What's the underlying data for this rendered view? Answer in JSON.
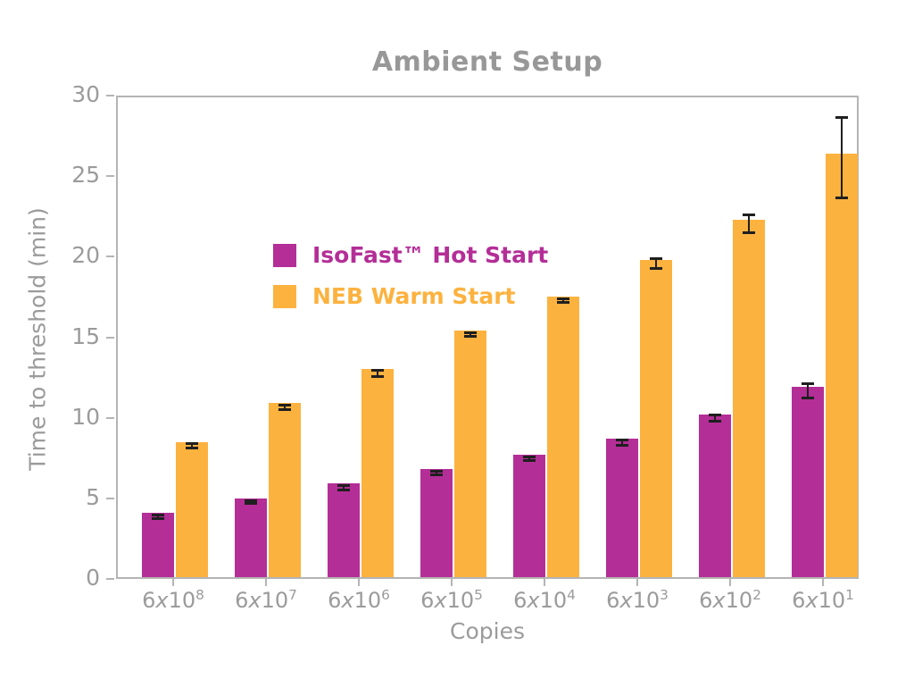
{
  "title": "Ambient Setup",
  "colors": {
    "isofast_magenta": "#b42e97",
    "neb_orange": "#fcb23f",
    "axis_gray": "#b4b4b4",
    "text_gray": "#9b9b9b",
    "error_bar_black": "#1f1f1f",
    "background": "#ffffff"
  },
  "chart_data": {
    "type": "bar",
    "title": "Ambient Setup",
    "xlabel": "Copies",
    "ylabel": "Time to threshold (min)",
    "ylim": [
      0,
      30
    ],
    "yticks": [
      0,
      5,
      10,
      15,
      20,
      25,
      30
    ],
    "grid": false,
    "legend_position": "upper-left-inside",
    "categories": [
      "6x10^8",
      "6x10^7",
      "6x10^6",
      "6x10^5",
      "6x10^4",
      "6x10^3",
      "6x10^2",
      "6x10^1"
    ],
    "series": [
      {
        "name": "IsoFast™ Hot Start",
        "color": "#b42e97",
        "values": [
          4.0,
          4.9,
          5.8,
          6.7,
          7.6,
          8.6,
          10.1,
          11.8
        ],
        "errors": [
          0.1,
          0.1,
          0.15,
          0.1,
          0.1,
          0.15,
          0.2,
          0.45
        ]
      },
      {
        "name": "NEB Warm Start",
        "color": "#fcb23f",
        "values": [
          8.4,
          10.8,
          12.9,
          15.3,
          17.4,
          19.7,
          22.2,
          26.3
        ],
        "errors": [
          0.15,
          0.15,
          0.2,
          0.1,
          0.1,
          0.3,
          0.55,
          2.5
        ]
      }
    ]
  }
}
